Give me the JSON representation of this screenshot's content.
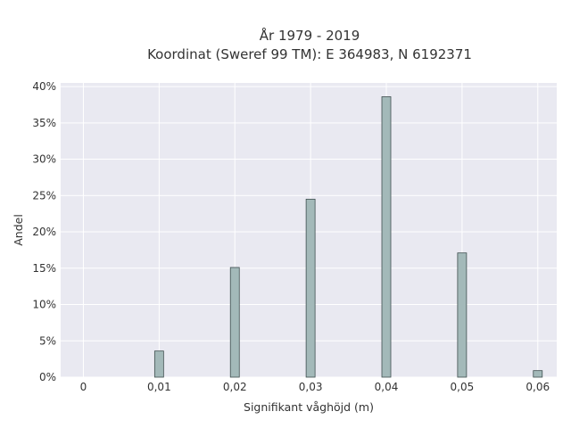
{
  "chart_data": {
    "type": "bar",
    "title": "År 1979 - 2019",
    "subtitle": "Koordinat (Sweref 99 TM): E 364983, N 6192371",
    "xlabel": "Signifikant våghöjd (m)",
    "ylabel": "Andel",
    "x": [
      0.01,
      0.02,
      0.03,
      0.04,
      0.05,
      0.06
    ],
    "values": [
      3.6,
      15.1,
      24.5,
      38.6,
      17.1,
      0.9
    ],
    "x_ticks": [
      0,
      0.01,
      0.02,
      0.03,
      0.04,
      0.05,
      0.06
    ],
    "x_tick_labels": [
      "0",
      "0,01",
      "0,02",
      "0,03",
      "0,04",
      "0,05",
      "0,06"
    ],
    "y_ticks": [
      0,
      5,
      10,
      15,
      20,
      25,
      30,
      35,
      40
    ],
    "y_tick_labels": [
      "0%",
      "5%",
      "10%",
      "15%",
      "20%",
      "25%",
      "30%",
      "35%",
      "40%"
    ],
    "xlim": [
      -0.003,
      0.0625
    ],
    "ylim": [
      0,
      40.5
    ],
    "grid": true,
    "colors": {
      "bar_fill": "#a3b9b9",
      "bar_stroke": "#3f4f4f",
      "plot_background": "#e9e9f1",
      "grid": "#ffffff"
    }
  }
}
